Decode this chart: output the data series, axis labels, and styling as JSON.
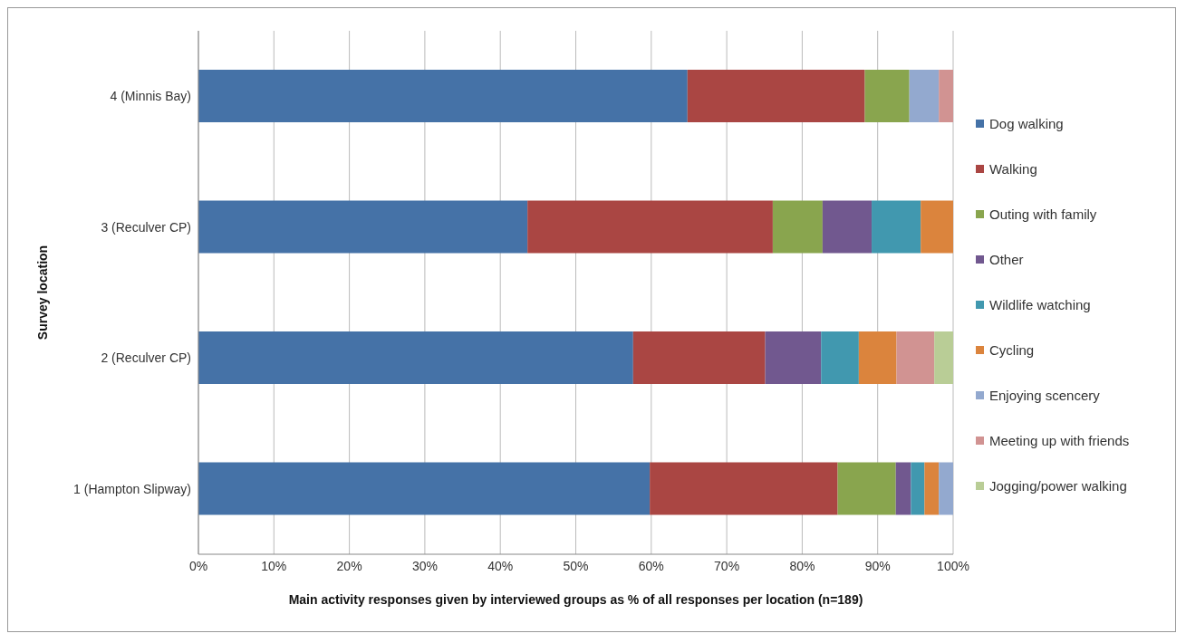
{
  "chart_data": {
    "type": "bar",
    "orientation": "horizontal",
    "stacked": true,
    "xlabel": "Main activity responses given by interviewed groups as % of all responses per location (n=189)",
    "ylabel": "Survey location",
    "categories": [
      "4 (Minnis Bay)",
      "3 (Reculver CP)",
      "2 (Reculver CP)",
      "1 (Hampton Slipway)"
    ],
    "series": [
      {
        "name": "Dog walking",
        "color": "#4572a7",
        "values": [
          64.8,
          43.6,
          57.6,
          59.8
        ]
      },
      {
        "name": "Walking",
        "color": "#aa4643",
        "values": [
          23.5,
          32.5,
          17.5,
          24.9
        ]
      },
      {
        "name": "Outing with family",
        "color": "#89a54e",
        "values": [
          5.9,
          6.6,
          null,
          7.7
        ]
      },
      {
        "name": "Other",
        "color": "#71588f",
        "values": [
          null,
          6.5,
          7.4,
          2.0
        ]
      },
      {
        "name": "Wildlife watching",
        "color": "#4198af",
        "values": [
          null,
          6.5,
          5.0,
          1.8
        ]
      },
      {
        "name": "Cycling",
        "color": "#db843d",
        "values": [
          null,
          4.3,
          5.0,
          1.9
        ]
      },
      {
        "name": "Enjoying scencery",
        "color": "#93a9cf",
        "values": [
          3.9,
          null,
          null,
          1.9
        ]
      },
      {
        "name": "Meeting up with friends",
        "color": "#d19392",
        "values": [
          1.9,
          null,
          5.0,
          null
        ]
      },
      {
        "name": "Jogging/power walking",
        "color": "#b9cd96",
        "values": [
          null,
          null,
          2.5,
          null
        ]
      }
    ],
    "xlim": [
      0,
      100
    ],
    "xticks": [
      {
        "value": 0,
        "label": "0%"
      },
      {
        "value": 10,
        "label": "10%"
      },
      {
        "value": 20,
        "label": "20%"
      },
      {
        "value": 30,
        "label": "30%"
      },
      {
        "value": 40,
        "label": "40%"
      },
      {
        "value": 50,
        "label": "50%"
      },
      {
        "value": 60,
        "label": "60%"
      },
      {
        "value": 70,
        "label": "70%"
      },
      {
        "value": 80,
        "label": "80%"
      },
      {
        "value": 90,
        "label": "90%"
      },
      {
        "value": 100,
        "label": "100%"
      }
    ],
    "grid": "x",
    "legend": "right"
  }
}
